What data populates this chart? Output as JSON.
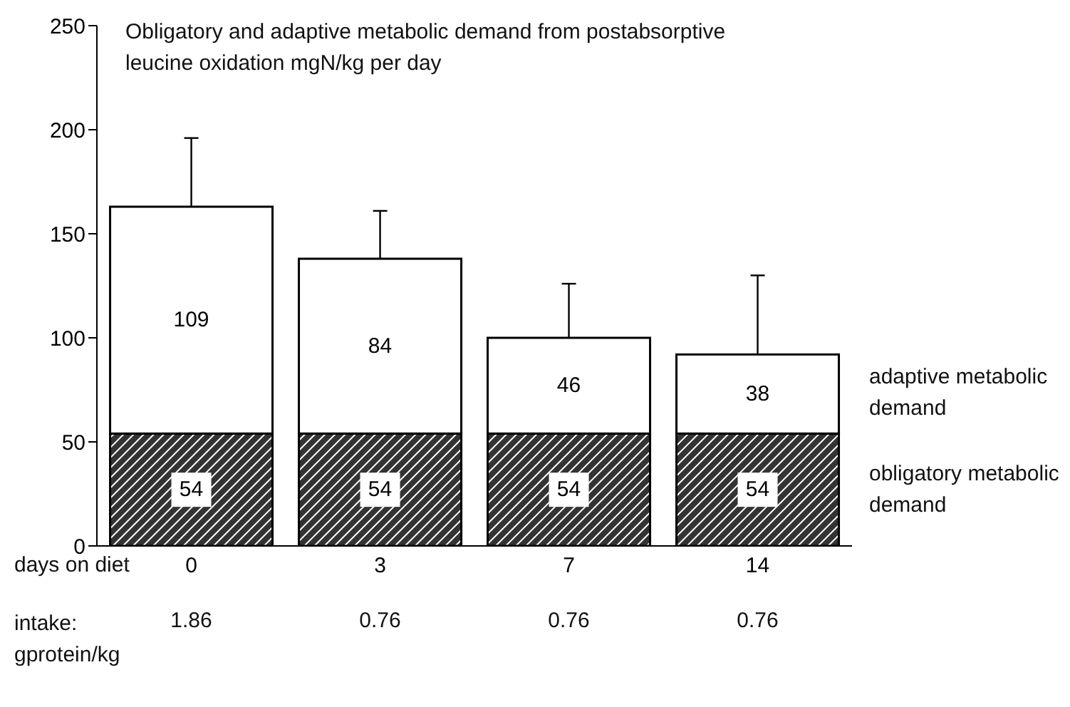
{
  "chart_data": {
    "type": "bar",
    "title": "Obligatory and adaptive metabolic demand from postabsorptive leucine oxidation mgN/kg per day",
    "xlabel": "days on diet",
    "categories": [
      "0",
      "3",
      "7",
      "14"
    ],
    "stacked": true,
    "data_labels": true,
    "ylim": [
      0,
      250
    ],
    "yticks": [
      0,
      50,
      100,
      150,
      200,
      250
    ],
    "series": [
      {
        "name": "obligatory metabolic demand",
        "color": "#333333",
        "values": [
          54,
          54,
          54,
          54
        ]
      },
      {
        "name": "adaptive metabolic demand",
        "color": "#ffffff",
        "values": [
          109,
          84,
          46,
          38
        ],
        "errors": [
          [
            163,
            196
          ],
          [
            138,
            161
          ],
          [
            100,
            126
          ],
          [
            92,
            130
          ]
        ]
      }
    ],
    "annotations": [
      {
        "text": "intake: gprotein/kg"
      },
      "1.86",
      "0.76",
      "0.76",
      "0.76"
    ]
  }
}
